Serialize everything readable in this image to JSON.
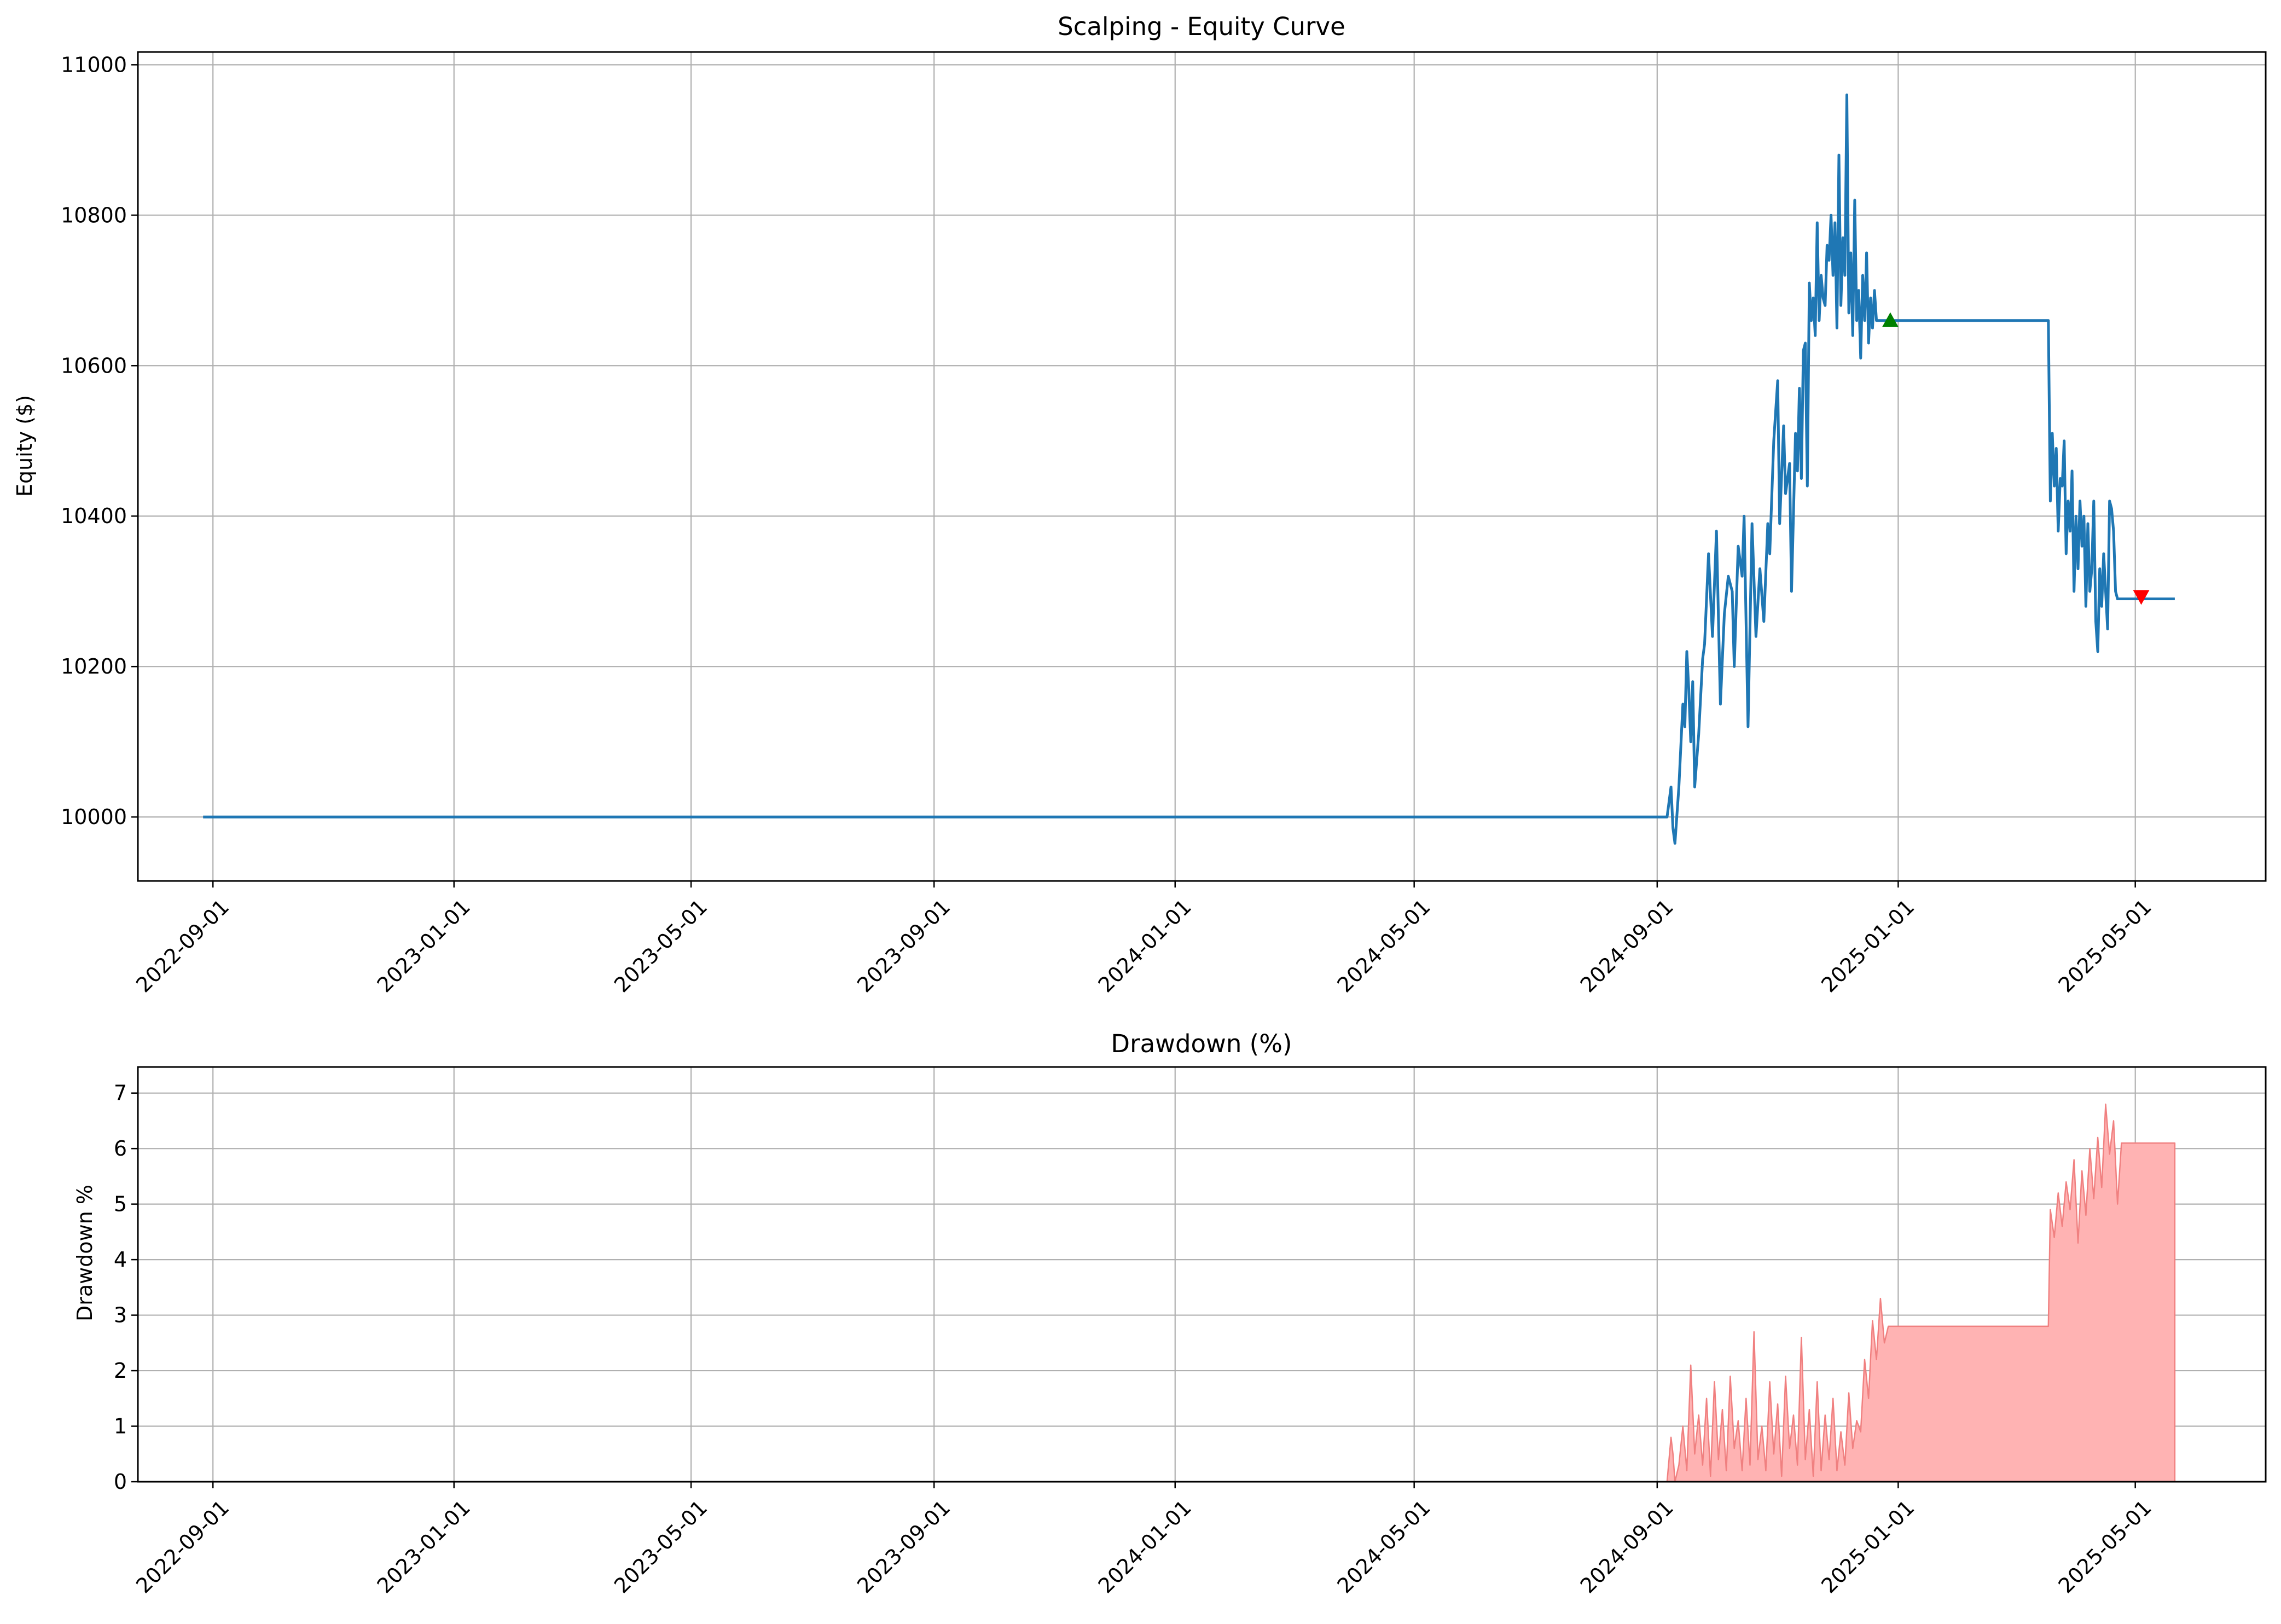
{
  "chart_data": [
    {
      "type": "line",
      "title": "Scalping - Equity Curve",
      "xlabel": "",
      "ylabel": "Equity ($)",
      "grid": true,
      "x_ticks": [
        "2022-09-01",
        "2023-01-01",
        "2023-05-01",
        "2023-09-01",
        "2024-01-01",
        "2024-05-01",
        "2024-09-01",
        "2025-01-01",
        "2025-05-01"
      ],
      "y_ticks": [
        10000,
        10200,
        10400,
        10600,
        10800,
        11000
      ],
      "xlim": [
        "2022-07-25",
        "2025-07-06"
      ],
      "ylim": [
        9915,
        11017
      ],
      "colors": {
        "line": "#1f77b4",
        "buy_marker": "#008000",
        "sell_marker": "#ff0000"
      },
      "series": [
        {
          "x": [
            "2022-08-27",
            "2024-09-06",
            "2024-09-08",
            "2024-09-09",
            "2024-09-10",
            "2024-09-12",
            "2024-09-14",
            "2024-09-15",
            "2024-09-16",
            "2024-09-17",
            "2024-09-18",
            "2024-09-19",
            "2024-09-20",
            "2024-09-22",
            "2024-09-24",
            "2024-09-25",
            "2024-09-27",
            "2024-09-29",
            "2024-10-01",
            "2024-10-03",
            "2024-10-05",
            "2024-10-07",
            "2024-10-09",
            "2024-10-10",
            "2024-10-12",
            "2024-10-14",
            "2024-10-15",
            "2024-10-17",
            "2024-10-19",
            "2024-10-21",
            "2024-10-23",
            "2024-10-25",
            "2024-10-27",
            "2024-10-28",
            "2024-10-30",
            "2024-11-01",
            "2024-11-02",
            "2024-11-04",
            "2024-11-05",
            "2024-11-07",
            "2024-11-08",
            "2024-11-10",
            "2024-11-11",
            "2024-11-12",
            "2024-11-13",
            "2024-11-14",
            "2024-11-15",
            "2024-11-16",
            "2024-11-17",
            "2024-11-18",
            "2024-11-19",
            "2024-11-20",
            "2024-11-21",
            "2024-11-22",
            "2024-11-23",
            "2024-11-24",
            "2024-11-25",
            "2024-11-26",
            "2024-11-27",
            "2024-11-28",
            "2024-11-29",
            "2024-11-30",
            "2024-12-01",
            "2024-12-02",
            "2024-12-03",
            "2024-12-04",
            "2024-12-05",
            "2024-12-06",
            "2024-12-07",
            "2024-12-08",
            "2024-12-09",
            "2024-12-10",
            "2024-12-11",
            "2024-12-12",
            "2024-12-13",
            "2024-12-14",
            "2024-12-15",
            "2024-12-16",
            "2024-12-17",
            "2024-12-18",
            "2024-12-19",
            "2024-12-20",
            "2024-12-21",
            "2024-12-22",
            "2024-12-23",
            "2024-12-24",
            "2024-12-25",
            "2024-12-26",
            "2024-12-27",
            "2024-12-28",
            "2024-12-29",
            "2024-12-30",
            "2025-03-18",
            "2025-03-19",
            "2025-03-20",
            "2025-03-21",
            "2025-03-22",
            "2025-03-23",
            "2025-03-24",
            "2025-03-25",
            "2025-03-26",
            "2025-03-27",
            "2025-03-28",
            "2025-03-29",
            "2025-03-30",
            "2025-03-31",
            "2025-04-01",
            "2025-04-02",
            "2025-04-03",
            "2025-04-04",
            "2025-04-05",
            "2025-04-06",
            "2025-04-07",
            "2025-04-08",
            "2025-04-09",
            "2025-04-10",
            "2025-04-11",
            "2025-04-12",
            "2025-04-13",
            "2025-04-14",
            "2025-04-15",
            "2025-04-16",
            "2025-04-17",
            "2025-04-18",
            "2025-04-19",
            "2025-04-20",
            "2025-04-21",
            "2025-04-22",
            "2025-04-23",
            "2025-04-24",
            "2025-04-25",
            "2025-04-26",
            "2025-04-27",
            "2025-04-28",
            "2025-04-29",
            "2025-04-30",
            "2025-05-01",
            "2025-05-02",
            "2025-05-03",
            "2025-05-04",
            "2025-05-05",
            "2025-05-21"
          ],
          "y": [
            10000,
            10000,
            10040,
            9985,
            9965,
            10040,
            10150,
            10120,
            10220,
            10170,
            10100,
            10180,
            10040,
            10110,
            10210,
            10230,
            10350,
            10240,
            10380,
            10150,
            10270,
            10320,
            10300,
            10200,
            10360,
            10320,
            10400,
            10120,
            10390,
            10240,
            10330,
            10260,
            10390,
            10350,
            10500,
            10580,
            10390,
            10520,
            10430,
            10470,
            10300,
            10510,
            10460,
            10570,
            10450,
            10620,
            10630,
            10440,
            10710,
            10660,
            10690,
            10640,
            10790,
            10660,
            10720,
            10690,
            10680,
            10760,
            10740,
            10800,
            10720,
            10790,
            10650,
            10880,
            10680,
            10770,
            10720,
            10960,
            10670,
            10750,
            10640,
            10820,
            10660,
            10700,
            10610,
            10720,
            10660,
            10750,
            10630,
            10690,
            10650,
            10700,
            10660,
            10660,
            10660,
            10660,
            10660,
            10660,
            10660,
            10660,
            10660,
            10660,
            10660,
            10420,
            10510,
            10440,
            10490,
            10380,
            10450,
            10440,
            10500,
            10350,
            10420,
            10380,
            10460,
            10300,
            10400,
            10330,
            10420,
            10360,
            10400,
            10280,
            10390,
            10300,
            10330,
            10420,
            10260,
            10220,
            10330,
            10280,
            10350,
            10300,
            10250,
            10420,
            10410,
            10380,
            10300,
            10290,
            10290,
            10290,
            10290,
            10290,
            10290,
            10290,
            10290,
            10290,
            10290,
            10290,
            10290,
            10290,
            10290,
            10290
          ]
        }
      ],
      "markers": [
        {
          "type": "buy",
          "shape": "triangle-up",
          "x": "2024-12-28",
          "y": 10660
        },
        {
          "type": "sell",
          "shape": "triangle-down",
          "x": "2025-05-04",
          "y": 10293
        }
      ]
    },
    {
      "type": "area",
      "title": "Drawdown (%)",
      "xlabel": "",
      "ylabel": "Drawdown %",
      "grid": true,
      "x_ticks": [
        "2022-09-01",
        "2023-01-01",
        "2023-05-01",
        "2023-09-01",
        "2024-01-01",
        "2024-05-01",
        "2024-09-01",
        "2025-01-01",
        "2025-05-01"
      ],
      "y_ticks": [
        0,
        1,
        2,
        3,
        4,
        5,
        6,
        7
      ],
      "xlim": [
        "2022-07-25",
        "2025-07-06"
      ],
      "ylim": [
        0,
        7.47
      ],
      "colors": {
        "fill": "#ffb3b3",
        "edge": "#f08080"
      },
      "series": [
        {
          "x": [
            "2022-08-27",
            "2024-09-06",
            "2024-09-08",
            "2024-09-09",
            "2024-09-10",
            "2024-09-12",
            "2024-09-14",
            "2024-09-16",
            "2024-09-18",
            "2024-09-20",
            "2024-09-22",
            "2024-09-24",
            "2024-09-26",
            "2024-09-28",
            "2024-09-30",
            "2024-10-02",
            "2024-10-04",
            "2024-10-06",
            "2024-10-08",
            "2024-10-10",
            "2024-10-12",
            "2024-10-14",
            "2024-10-16",
            "2024-10-18",
            "2024-10-20",
            "2024-10-22",
            "2024-10-24",
            "2024-10-26",
            "2024-10-28",
            "2024-10-30",
            "2024-11-01",
            "2024-11-03",
            "2024-11-05",
            "2024-11-07",
            "2024-11-09",
            "2024-11-11",
            "2024-11-13",
            "2024-11-15",
            "2024-11-17",
            "2024-11-19",
            "2024-11-21",
            "2024-11-23",
            "2024-11-25",
            "2024-11-27",
            "2024-11-29",
            "2024-12-01",
            "2024-12-03",
            "2024-12-05",
            "2024-12-07",
            "2024-12-09",
            "2024-12-11",
            "2024-12-13",
            "2024-12-15",
            "2024-12-17",
            "2024-12-19",
            "2024-12-21",
            "2024-12-23",
            "2024-12-25",
            "2024-12-27",
            "2024-12-29",
            "2024-12-31",
            "2025-03-18",
            "2025-03-19",
            "2025-03-21",
            "2025-03-23",
            "2025-03-25",
            "2025-03-27",
            "2025-03-29",
            "2025-03-31",
            "2025-04-02",
            "2025-04-04",
            "2025-04-06",
            "2025-04-08",
            "2025-04-10",
            "2025-04-12",
            "2025-04-14",
            "2025-04-16",
            "2025-04-18",
            "2025-04-20",
            "2025-04-22",
            "2025-04-24",
            "2025-04-26",
            "2025-04-28",
            "2025-04-30",
            "2025-05-02",
            "2025-05-03",
            "2025-05-21"
          ],
          "y": [
            0,
            0,
            0.8,
            0.5,
            0,
            0.3,
            1.0,
            0.2,
            2.1,
            0.5,
            1.2,
            0.3,
            1.5,
            0.1,
            1.8,
            0.4,
            1.3,
            0.2,
            1.9,
            0.6,
            1.1,
            0.2,
            1.5,
            0.3,
            2.7,
            0.4,
            1.0,
            0.2,
            1.8,
            0.5,
            1.4,
            0.1,
            1.9,
            0.6,
            1.2,
            0.3,
            2.6,
            0.4,
            1.3,
            0.1,
            1.8,
            0.2,
            1.2,
            0.4,
            1.5,
            0.2,
            0.9,
            0.3,
            1.6,
            0.6,
            1.1,
            0.9,
            2.2,
            1.5,
            2.9,
            2.2,
            3.3,
            2.5,
            2.8,
            2.8,
            2.8,
            2.8,
            4.9,
            4.4,
            5.2,
            4.6,
            5.4,
            4.9,
            5.8,
            4.3,
            5.6,
            4.8,
            6.0,
            5.1,
            6.2,
            5.3,
            6.8,
            5.9,
            6.5,
            5.0,
            6.1,
            6.1,
            6.1,
            6.1,
            6.1,
            6.1,
            6.1
          ]
        }
      ]
    }
  ]
}
